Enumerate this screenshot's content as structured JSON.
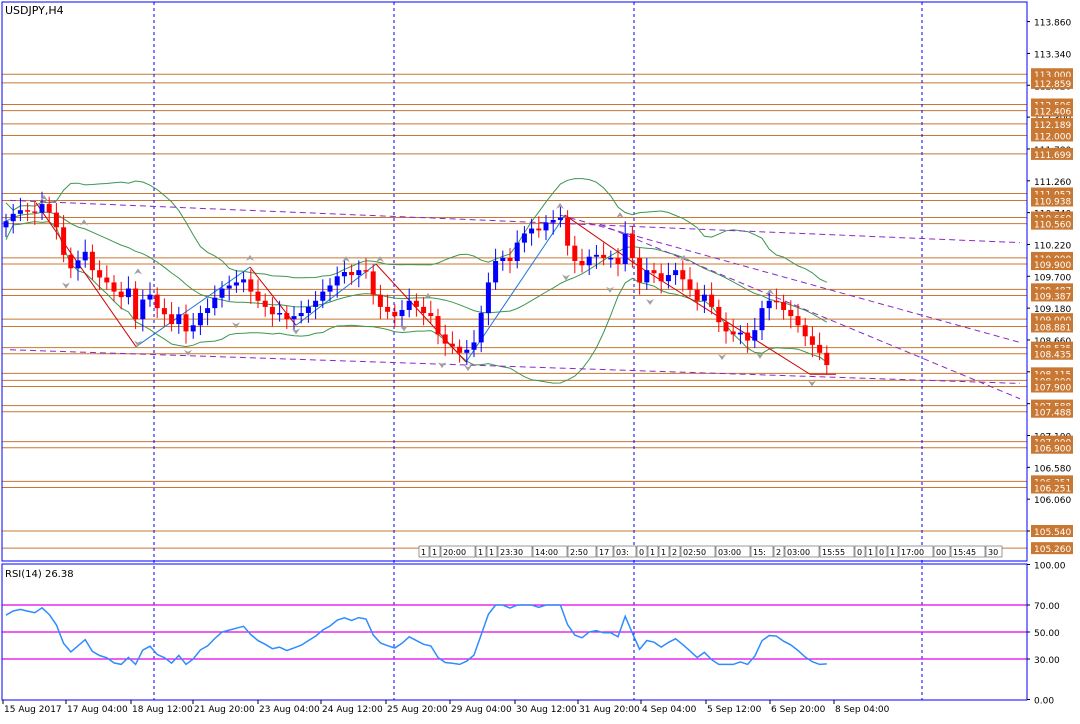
{
  "main_title": "USDJPY,H4",
  "rsi_title": "RSI(14) 26.38",
  "colors": {
    "frame": "#0000FF",
    "grid_vline": "#0000FF",
    "level_line": "#C87832",
    "level_label_bg": "#C87832",
    "bull_candle": "#0000FF",
    "bear_candle": "#FF0000",
    "bollinger": "#3C9650",
    "trendline": "#8B28C8",
    "zigzag_down": "#CC0000",
    "zigzag_up": "#1E78DC",
    "rsi_line": "#2D8CFF",
    "rsi_levels": "#E600E6",
    "fractal": "#A0A0A0"
  },
  "price_axis_labels": [
    "113.860",
    "113.340",
    "112.820",
    "112.300",
    "111.780",
    "111.260",
    "110.740",
    "110.220",
    "109.700",
    "109.180",
    "108.660",
    "108.140",
    "107.620",
    "107.100",
    "106.580",
    "106.060",
    "105.540"
  ],
  "level_labels": [
    {
      "text": "113.000",
      "value": 113.0
    },
    {
      "text": "112.859",
      "value": 112.859
    },
    {
      "text": "112.506",
      "value": 112.506
    },
    {
      "text": "112.406",
      "value": 112.406
    },
    {
      "text": "112.189",
      "value": 112.189
    },
    {
      "text": "112.000",
      "value": 112.0
    },
    {
      "text": "111.699",
      "value": 111.699
    },
    {
      "text": "111.052",
      "value": 111.052
    },
    {
      "text": "110.938",
      "value": 110.938
    },
    {
      "text": "110.660",
      "value": 110.66
    },
    {
      "text": "110.560",
      "value": 110.56
    },
    {
      "text": "110.000",
      "value": 110.0
    },
    {
      "text": "109.900",
      "value": 109.9
    },
    {
      "text": "109.487",
      "value": 109.487
    },
    {
      "text": "109.387",
      "value": 109.387
    },
    {
      "text": "109.000",
      "value": 109.0
    },
    {
      "text": "108.881",
      "value": 108.881
    },
    {
      "text": "108.535",
      "value": 108.535
    },
    {
      "text": "108.435",
      "value": 108.435
    },
    {
      "text": "108.115",
      "value": 108.115
    },
    {
      "text": "108.000",
      "value": 108.0
    },
    {
      "text": "107.900",
      "value": 107.9
    },
    {
      "text": "107.588",
      "value": 107.588
    },
    {
      "text": "107.488",
      "value": 107.488
    },
    {
      "text": "107.000",
      "value": 107.0
    },
    {
      "text": "106.900",
      "value": 106.9
    },
    {
      "text": "106.351",
      "value": 106.351
    },
    {
      "text": "106.251",
      "value": 106.251
    },
    {
      "text": "105.540",
      "value": 105.54
    },
    {
      "text": "105.260",
      "value": 105.26
    }
  ],
  "time_labels": [
    "15 Aug 2017",
    "17 Aug 04:00",
    "18 Aug 12:00",
    "21 Aug 20:00",
    "23 Aug 04:00",
    "24 Aug 12:00",
    "25 Aug 20:00",
    "29 Aug 04:00",
    "30 Aug 12:00",
    "31 Aug 20:00",
    "4 Sep 04:00",
    "5 Sep 12:00",
    "6 Sep 20:00",
    "8 Sep 04:00"
  ],
  "time_tags": [
    {
      "text": "1"
    },
    {
      "text": "1"
    },
    {
      "text": "20:00"
    },
    {
      "text": "1"
    },
    {
      "text": "1"
    },
    {
      "text": "23:30"
    },
    {
      "text": "14:00"
    },
    {
      "text": "2:50"
    },
    {
      "text": "17"
    },
    {
      "text": "03:"
    },
    {
      "text": "0"
    },
    {
      "text": "1"
    },
    {
      "text": "1"
    },
    {
      "text": "2"
    },
    {
      "text": "02:50"
    },
    {
      "text": "03:00"
    },
    {
      "text": "15:"
    },
    {
      "text": "2"
    },
    {
      "text": "03:00"
    },
    {
      "text": "15:55"
    },
    {
      "text": "0"
    },
    {
      "text": "1"
    },
    {
      "text": "0"
    },
    {
      "text": "1"
    },
    {
      "text": "17:00"
    },
    {
      "text": "00"
    },
    {
      "text": "15:45"
    },
    {
      "text": "30"
    }
  ],
  "rsi_axis_labels": [
    "100.00",
    "70.00",
    "50.00",
    "30.00",
    "0.00"
  ],
  "chart_data": [
    {
      "type": "candlestick",
      "title": "USDJPY,H4",
      "ylim": [
        105.05,
        114.18
      ],
      "levels": [
        113.0,
        112.859,
        112.506,
        112.406,
        112.189,
        112.0,
        111.699,
        111.052,
        110.938,
        110.66,
        110.56,
        110.0,
        109.9,
        109.487,
        109.387,
        109.0,
        108.881,
        108.535,
        108.435,
        108.115,
        108.0,
        107.9,
        107.588,
        107.488,
        107.0,
        106.9,
        106.351,
        106.251,
        105.54,
        105.26
      ],
      "close": [
        110.6,
        110.72,
        110.78,
        110.76,
        110.74,
        110.88,
        110.74,
        110.5,
        110.05,
        109.83,
        109.96,
        110.1,
        109.8,
        109.68,
        109.6,
        109.45,
        109.36,
        109.5,
        109.0,
        109.32,
        109.4,
        109.18,
        109.08,
        108.92,
        109.08,
        108.8,
        108.9,
        109.1,
        109.18,
        109.35,
        109.5,
        109.55,
        109.6,
        109.65,
        109.45,
        109.3,
        109.2,
        109.08,
        109.1,
        109.0,
        109.05,
        109.1,
        109.2,
        109.3,
        109.45,
        109.55,
        109.7,
        109.77,
        109.72,
        109.8,
        109.78,
        109.4,
        109.2,
        109.12,
        109.05,
        109.15,
        109.3,
        109.2,
        109.1,
        109.05,
        108.75,
        108.6,
        108.55,
        108.45,
        108.5,
        108.62,
        109.1,
        109.6,
        109.95,
        110.0,
        109.95,
        110.25,
        110.4,
        110.48,
        110.45,
        110.58,
        110.62,
        110.66,
        110.2,
        109.95,
        109.88,
        110.02,
        110.05,
        110.0,
        110.0,
        109.9,
        110.4,
        110.0,
        109.6,
        109.8,
        109.75,
        109.62,
        109.72,
        109.8,
        109.65,
        109.48,
        109.3,
        109.4,
        109.2,
        108.95,
        108.8,
        108.75,
        108.78,
        108.65,
        108.82,
        109.18,
        109.3,
        109.28,
        109.15,
        109.05,
        108.9,
        108.72,
        108.58,
        108.45,
        108.25
      ],
      "rsi": {
        "levels": [
          70,
          50,
          30
        ],
        "ylim": [
          0,
          100
        ],
        "last": 26.38
      }
    }
  ]
}
